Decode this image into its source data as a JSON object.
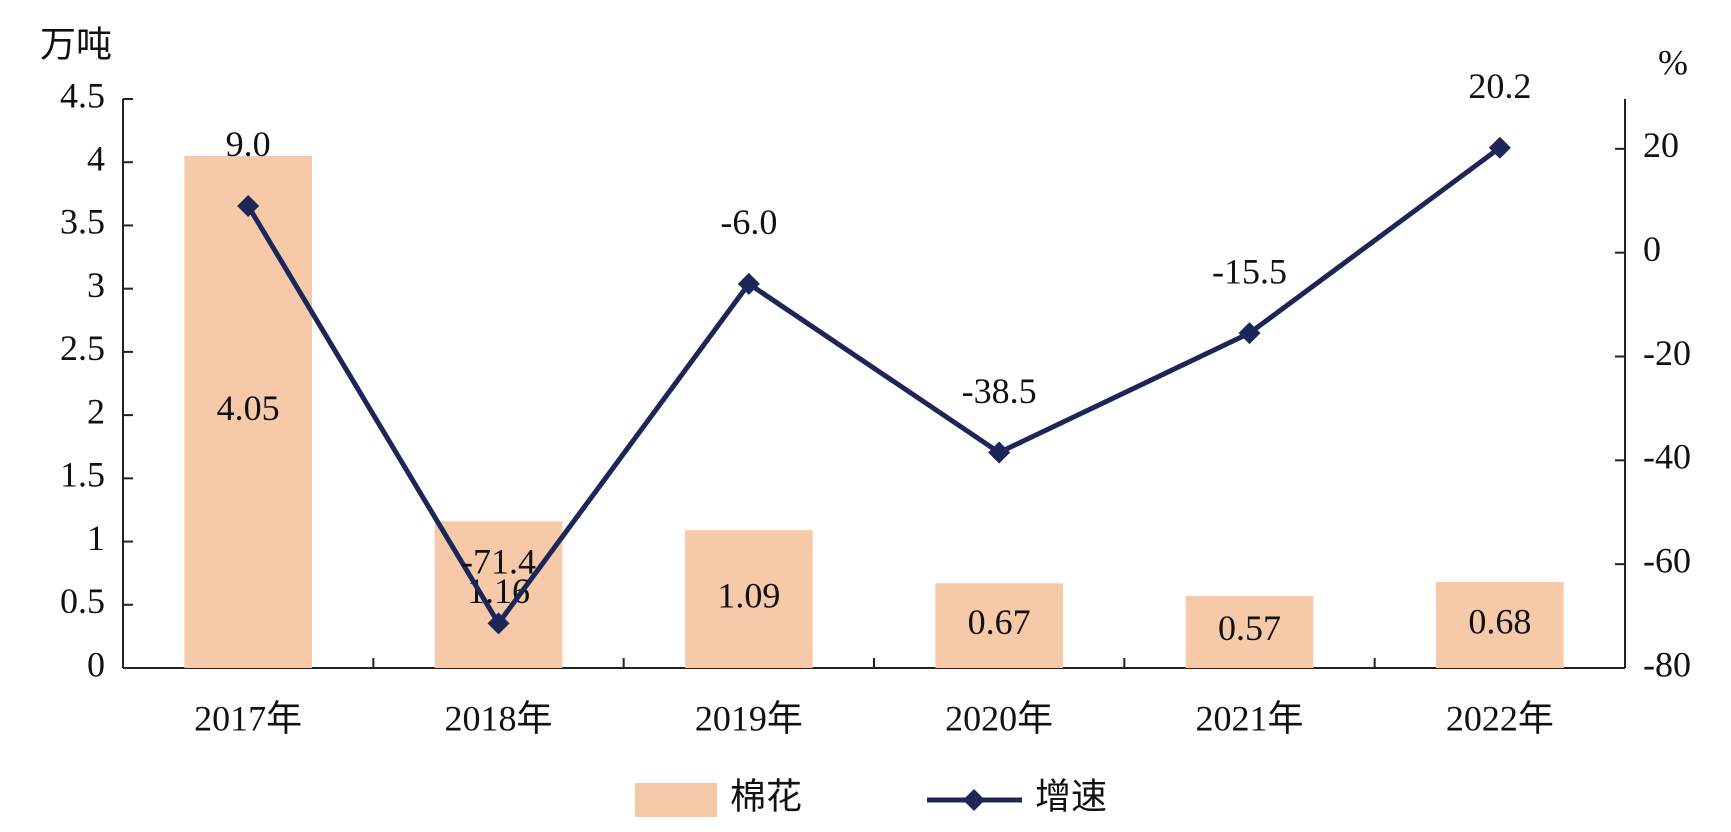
{
  "chart_data": {
    "type": "bar",
    "y_label": "万吨",
    "y2_label": "%",
    "categories": [
      "2017年",
      "2018年",
      "2019年",
      "2020年",
      "2021年",
      "2022年"
    ],
    "series": [
      {
        "name": "棉花",
        "type": "bar",
        "color": "#f6c9a8",
        "values": [
          4.05,
          1.16,
          1.09,
          0.67,
          0.57,
          0.68
        ]
      },
      {
        "name": "增速",
        "type": "line",
        "axis": "y2",
        "color": "#1c2658",
        "values": [
          9.0,
          -71.4,
          -6.0,
          -38.5,
          -15.5,
          20.2
        ],
        "value_labels": [
          "9.0",
          "-71.4",
          "-6.0",
          "-38.5",
          "-15.5",
          "20.2"
        ]
      }
    ],
    "ylim": [
      0,
      4.5
    ],
    "yticks": [
      0,
      0.5,
      1,
      1.5,
      2,
      2.5,
      3,
      3.5,
      4,
      4.5
    ],
    "y2lim": [
      -80,
      29.6
    ],
    "y2ticks": [
      -80,
      -60,
      -40,
      -20,
      0,
      20
    ],
    "legend": "bottom",
    "grid": false
  }
}
